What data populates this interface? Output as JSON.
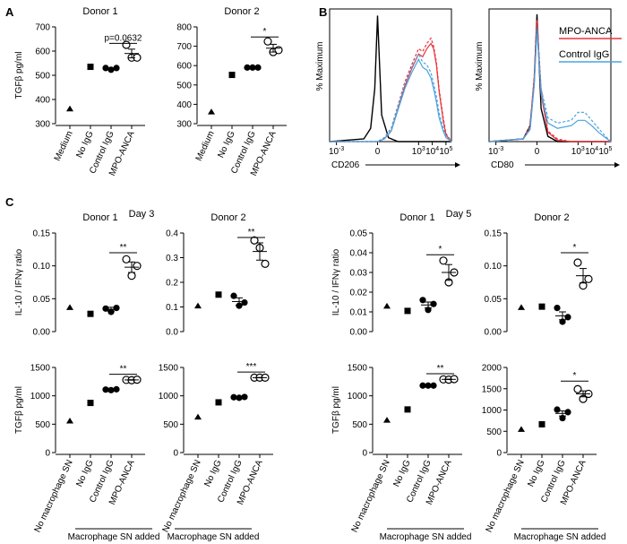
{
  "panel_labels": {
    "A": "A",
    "B": "B",
    "C": "C"
  },
  "day_labels": {
    "day3": "Day 3",
    "day5": "Day 5"
  },
  "brackets": {
    "macrophage_sn_added": "Macrophage SN added"
  },
  "colors": {
    "mpo_anca": "#e8333a",
    "control_igg": "#4aa3df",
    "isotype": "#000000"
  },
  "chart_data": [
    {
      "id": "a1",
      "type": "scatter",
      "title": "Donor 1",
      "ylabel": "TGFβ pg/ml",
      "categories": [
        "Medium",
        "No IgG",
        "Control IgG",
        "MPO-ANCA"
      ],
      "markers": [
        "triangle",
        "square",
        "circle-filled",
        "circle-open"
      ],
      "ylim": [
        300,
        700
      ],
      "yticks": [
        300,
        400,
        500,
        600,
        700
      ],
      "ytick_labels": [
        "300",
        "400",
        "500",
        "600",
        "700"
      ],
      "series": [
        {
          "points": [
            362
          ]
        },
        {
          "points": [
            535
          ]
        },
        {
          "points": [
            530,
            523,
            530
          ]
        },
        {
          "points": [
            626,
            573,
            573
          ],
          "mean": 590,
          "sem": 18
        }
      ],
      "annotations": [
        {
          "text": "p=0.0632",
          "from": 2,
          "to": 3,
          "y": 632
        }
      ]
    },
    {
      "id": "a2",
      "type": "scatter",
      "title": "Donor 2",
      "ylabel": "",
      "categories": [
        "Medium",
        "No IgG",
        "Control IgG",
        "MPO-ANCA"
      ],
      "markers": [
        "triangle",
        "square",
        "circle-filled",
        "circle-open"
      ],
      "ylim": [
        300,
        800
      ],
      "yticks": [
        300,
        400,
        500,
        600,
        700,
        800
      ],
      "ytick_labels": [
        "300",
        "400",
        "500",
        "600",
        "700",
        "800"
      ],
      "series": [
        {
          "points": [
            362
          ]
        },
        {
          "points": [
            552
          ]
        },
        {
          "points": [
            590,
            590,
            590
          ]
        },
        {
          "points": [
            725,
            670,
            680
          ],
          "mean": 690,
          "sem": 20
        }
      ],
      "annotations": [
        {
          "text": "*",
          "from": 2,
          "to": 3,
          "y": 748
        }
      ]
    },
    {
      "id": "b1",
      "type": "line",
      "xlabel": "CD206",
      "ylabel": "% Maximum",
      "xtick_labels": [
        "10-3",
        "0",
        "103",
        "104",
        "105"
      ],
      "xticks": [
        -3,
        0,
        3,
        4,
        5
      ],
      "xlim": [
        -3.5,
        5.4
      ],
      "ylim": [
        0,
        100
      ],
      "series": [
        {
          "name": "",
          "color_key": "isotype",
          "x": [
            -3.5,
            -1,
            -0.5,
            -0.2,
            0,
            0.3,
            0.8,
            1.5,
            2.5,
            3,
            5.4
          ],
          "y": [
            0,
            2,
            10,
            40,
            95,
            20,
            3,
            0,
            0,
            0,
            0
          ]
        },
        {
          "name": "",
          "color_key": "mpo_anca",
          "x": [
            -3.5,
            0,
            0.5,
            1,
            2,
            2.5,
            3,
            3.3,
            3.6,
            3.9,
            4.1,
            4.3,
            4.5,
            4.8,
            5,
            5.4
          ],
          "y": [
            0,
            0,
            3,
            10,
            45,
            58,
            70,
            68,
            74,
            78,
            72,
            60,
            40,
            18,
            6,
            0
          ]
        },
        {
          "name": "",
          "color_key": "mpo_anca",
          "x": [
            -3.5,
            0,
            0.5,
            1,
            2,
            2.5,
            3,
            3.3,
            3.6,
            3.9,
            4.1,
            4.3,
            4.5,
            4.8,
            5,
            5.4
          ],
          "y": [
            0,
            0,
            2,
            8,
            42,
            55,
            66,
            64,
            70,
            74,
            70,
            58,
            38,
            16,
            5,
            0
          ]
        },
        {
          "name": "",
          "color_key": "control_igg",
          "x": [
            -3.5,
            0,
            0.5,
            1,
            2,
            2.5,
            3,
            3.3,
            3.6,
            3.9,
            4.1,
            4.3,
            4.5,
            4.8,
            5,
            5.4
          ],
          "y": [
            0,
            0,
            3,
            10,
            44,
            56,
            66,
            60,
            58,
            52,
            44,
            34,
            22,
            10,
            4,
            0
          ]
        },
        {
          "name": "",
          "color_key": "control_igg",
          "x": [
            -3.5,
            0,
            0.5,
            1,
            2,
            2.5,
            3,
            3.3,
            3.6,
            3.9,
            4.1,
            4.3,
            4.5,
            4.8,
            5,
            5.4
          ],
          "y": [
            0,
            0,
            2,
            8,
            40,
            52,
            62,
            56,
            54,
            48,
            40,
            30,
            18,
            8,
            3,
            0
          ]
        }
      ]
    },
    {
      "id": "b2",
      "type": "line",
      "xlabel": "CD80",
      "ylabel": "% Maximum",
      "xtick_labels": [
        "10-3",
        "0",
        "103",
        "104",
        "105"
      ],
      "xticks": [
        -3,
        0,
        3,
        4,
        5
      ],
      "xlim": [
        -3.5,
        5.4
      ],
      "ylim": [
        0,
        100
      ],
      "legend": [
        {
          "label": "MPO-ANCA",
          "color_key": "mpo_anca"
        },
        {
          "label": "Control IgG",
          "color_key": "control_igg"
        }
      ],
      "series": [
        {
          "name": "",
          "color_key": "isotype",
          "x": [
            -3.5,
            -1,
            -0.5,
            -0.2,
            0,
            0.3,
            0.8,
            1.5,
            5.4
          ],
          "y": [
            0,
            2,
            12,
            45,
            96,
            25,
            4,
            0,
            0
          ]
        },
        {
          "name": "",
          "color_key": "mpo_anca",
          "x": [
            -3.5,
            -1,
            -0.5,
            -0.2,
            0,
            0.3,
            0.8,
            1.5,
            2.5,
            5.4
          ],
          "y": [
            0,
            2,
            12,
            50,
            92,
            40,
            8,
            2,
            0,
            0
          ]
        },
        {
          "name": "",
          "color_key": "mpo_anca",
          "x": [
            -3.5,
            -1,
            -0.5,
            -0.2,
            0,
            0.3,
            0.8,
            1.5,
            2.5,
            5.4
          ],
          "y": [
            0,
            2,
            10,
            46,
            90,
            36,
            7,
            1,
            0,
            0
          ]
        },
        {
          "name": "",
          "color_key": "control_igg",
          "x": [
            -3.5,
            -1,
            -0.5,
            -0.2,
            0,
            0.3,
            0.8,
            1.5,
            2.5,
            3,
            3.5,
            4,
            4.5,
            5,
            5.4
          ],
          "y": [
            0,
            2,
            10,
            44,
            86,
            40,
            18,
            14,
            16,
            22,
            22,
            16,
            10,
            4,
            0
          ]
        },
        {
          "name": "",
          "color_key": "control_igg",
          "x": [
            -3.5,
            -1,
            -0.5,
            -0.2,
            0,
            0.3,
            0.8,
            1.5,
            2.5,
            3,
            3.5,
            4,
            4.5,
            5,
            5.4
          ],
          "y": [
            0,
            2,
            9,
            42,
            84,
            36,
            14,
            10,
            12,
            16,
            16,
            12,
            7,
            3,
            0
          ]
        }
      ]
    },
    {
      "id": "c1",
      "type": "scatter",
      "title": "Donor 1",
      "ylabel": "IL-10 / IFNγ ratio",
      "categories": [
        "",
        "",
        "",
        ""
      ],
      "markers": [
        "triangle",
        "square",
        "circle-filled",
        "circle-open"
      ],
      "ylim": [
        0,
        0.15
      ],
      "yticks": [
        0,
        0.05,
        0.1,
        0.15
      ],
      "ytick_labels": [
        "0.00",
        "0.05",
        "0.10",
        "0.15"
      ],
      "series": [
        {
          "points": [
            0.037
          ]
        },
        {
          "points": [
            0.027
          ]
        },
        {
          "points": [
            0.035,
            0.03,
            0.036
          ],
          "mean": 0.034,
          "sem": 0.003
        },
        {
          "points": [
            0.11,
            0.085,
            0.1
          ],
          "mean": 0.098,
          "sem": 0.008
        }
      ],
      "annotations": [
        {
          "text": "**",
          "from": 2,
          "to": 3,
          "y": 0.12
        }
      ]
    },
    {
      "id": "c2",
      "type": "scatter",
      "title": "Donor 2",
      "ylabel": "",
      "categories": [
        "",
        "",
        "",
        ""
      ],
      "markers": [
        "triangle",
        "square",
        "circle-filled",
        "circle-open"
      ],
      "ylim": [
        0,
        0.4
      ],
      "yticks": [
        0,
        0.1,
        0.2,
        0.3,
        0.4
      ],
      "ytick_labels": [
        "0.0",
        "0.1",
        "0.2",
        "0.3",
        "0.4"
      ],
      "series": [
        {
          "points": [
            0.105
          ]
        },
        {
          "points": [
            0.15
          ]
        },
        {
          "points": [
            0.145,
            0.105,
            0.118
          ],
          "mean": 0.122,
          "sem": 0.015
        },
        {
          "points": [
            0.37,
            0.34,
            0.275
          ],
          "mean": 0.325,
          "sem": 0.035
        }
      ],
      "annotations": [
        {
          "text": "**",
          "from": 2,
          "to": 3,
          "y": 0.382
        }
      ]
    },
    {
      "id": "c3",
      "type": "scatter",
      "title": "Donor 1",
      "ylabel": "IL-10 / IFNγ ratio",
      "categories": [
        "",
        "",
        "",
        ""
      ],
      "markers": [
        "triangle",
        "square",
        "circle-filled",
        "circle-open"
      ],
      "ylim": [
        0,
        0.05
      ],
      "yticks": [
        0,
        0.01,
        0.02,
        0.03,
        0.04,
        0.05
      ],
      "ytick_labels": [
        "0.00",
        "0.01",
        "0.02",
        "0.03",
        "0.04",
        "0.05"
      ],
      "series": [
        {
          "points": [
            0.013
          ]
        },
        {
          "points": [
            0.0105
          ]
        },
        {
          "points": [
            0.016,
            0.011,
            0.014
          ],
          "mean": 0.0135,
          "sem": 0.0015
        },
        {
          "points": [
            0.036,
            0.025,
            0.03
          ],
          "mean": 0.03,
          "sem": 0.004
        }
      ],
      "annotations": [
        {
          "text": "*",
          "from": 2,
          "to": 3,
          "y": 0.039
        }
      ]
    },
    {
      "id": "c4",
      "type": "scatter",
      "title": "Donor 2",
      "ylabel": "",
      "categories": [
        "",
        "",
        "",
        ""
      ],
      "markers": [
        "triangle",
        "square",
        "circle-filled",
        "circle-open"
      ],
      "ylim": [
        0,
        0.15
      ],
      "yticks": [
        0,
        0.05,
        0.1,
        0.15
      ],
      "ytick_labels": [
        "0.00",
        "0.05",
        "0.10",
        "0.15"
      ],
      "series": [
        {
          "points": [
            0.037
          ]
        },
        {
          "points": [
            0.038
          ]
        },
        {
          "points": [
            0.036,
            0.015,
            0.022
          ],
          "mean": 0.024,
          "sem": 0.006
        },
        {
          "points": [
            0.105,
            0.07,
            0.08
          ],
          "mean": 0.085,
          "sem": 0.011
        }
      ],
      "annotations": [
        {
          "text": "*",
          "from": 2,
          "to": 3,
          "y": 0.12
        }
      ]
    },
    {
      "id": "c5",
      "type": "scatter",
      "title": "",
      "ylabel": "TGFβ pg/ml",
      "categories": [
        "No macrophage SN",
        "No IgG",
        "Control IgG",
        "MPO-ANCA"
      ],
      "markers": [
        "triangle",
        "square",
        "circle-filled",
        "circle-open"
      ],
      "ylim": [
        0,
        1500
      ],
      "yticks": [
        0,
        500,
        1000,
        1500
      ],
      "ytick_labels": [
        "0",
        "500",
        "1000",
        "1500"
      ],
      "series": [
        {
          "points": [
            560
          ]
        },
        {
          "points": [
            875
          ]
        },
        {
          "points": [
            1110,
            1100,
            1115
          ],
          "mean": 1110,
          "sem": 6
        },
        {
          "points": [
            1280,
            1275,
            1285
          ],
          "mean": 1280,
          "sem": 4
        }
      ],
      "annotations": [
        {
          "text": "**",
          "from": 2,
          "to": 3,
          "y": 1380
        }
      ]
    },
    {
      "id": "c6",
      "type": "scatter",
      "title": "",
      "ylabel": "",
      "categories": [
        "No macrophage SN",
        "No IgG",
        "Control IgG",
        "MPO-ANCA"
      ],
      "markers": [
        "triangle",
        "square",
        "circle-filled",
        "circle-open"
      ],
      "ylim": [
        0,
        1500
      ],
      "yticks": [
        0,
        500,
        1000,
        1500
      ],
      "ytick_labels": [
        "0",
        "500",
        "1000",
        "1500"
      ],
      "series": [
        {
          "points": [
            630
          ]
        },
        {
          "points": [
            885
          ]
        },
        {
          "points": [
            975,
            965,
            980
          ],
          "mean": 972,
          "sem": 5
        },
        {
          "points": [
            1320,
            1320,
            1320
          ],
          "mean": 1320,
          "sem": 3
        }
      ],
      "annotations": [
        {
          "text": "***",
          "from": 2,
          "to": 3,
          "y": 1420
        }
      ]
    },
    {
      "id": "c7",
      "type": "scatter",
      "title": "",
      "ylabel": "TGFβ pg/ml",
      "categories": [
        "No macrophage SN",
        "No IgG",
        "Control IgG",
        "MPO-ANCA"
      ],
      "markers": [
        "triangle",
        "square",
        "circle-filled",
        "circle-open"
      ],
      "ylim": [
        0,
        1500
      ],
      "yticks": [
        0,
        500,
        1000,
        1500
      ],
      "ytick_labels": [
        "0",
        "500",
        "1000",
        "1500"
      ],
      "series": [
        {
          "points": [
            575
          ]
        },
        {
          "points": [
            760
          ]
        },
        {
          "points": [
            1180,
            1180,
            1180
          ],
          "mean": 1180,
          "sem": 3
        },
        {
          "points": [
            1290,
            1285,
            1295
          ],
          "mean": 1290,
          "sem": 4
        }
      ],
      "annotations": [
        {
          "text": "**",
          "from": 2,
          "to": 3,
          "y": 1390
        }
      ]
    },
    {
      "id": "c8",
      "type": "scatter",
      "title": "",
      "ylabel": "",
      "categories": [
        "No macrophage SN",
        "No IgG",
        "Control IgG",
        "MPO-ANCA"
      ],
      "markers": [
        "triangle",
        "square",
        "circle-filled",
        "circle-open"
      ],
      "ylim": [
        0,
        2000
      ],
      "yticks": [
        0,
        500,
        1000,
        1500,
        2000
      ],
      "ytick_labels": [
        "0",
        "500",
        "1000",
        "1500",
        "2000"
      ],
      "series": [
        {
          "points": [
            550
          ]
        },
        {
          "points": [
            665
          ]
        },
        {
          "points": [
            1010,
            810,
            950
          ],
          "mean": 920,
          "sem": 60
        },
        {
          "points": [
            1490,
            1260,
            1380
          ],
          "mean": 1380,
          "sem": 70
        }
      ],
      "annotations": [
        {
          "text": "*",
          "from": 2,
          "to": 3,
          "y": 1680
        }
      ]
    }
  ]
}
